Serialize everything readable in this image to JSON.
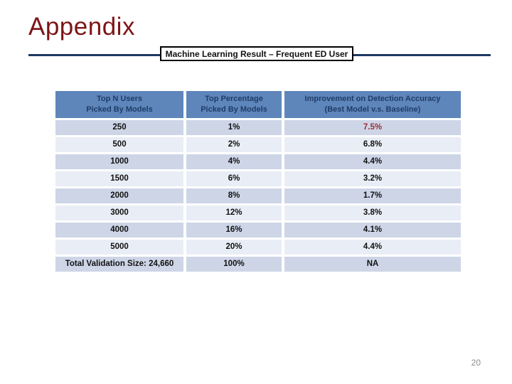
{
  "slide": {
    "title": "Appendix",
    "callout": "Machine Learning Result – Frequent ED User",
    "page_number": "20"
  },
  "table": {
    "headers": [
      {
        "line1": "Top N Users",
        "line2": "Picked By Models"
      },
      {
        "line1": "Top Percentage",
        "line2": "Picked By Models"
      },
      {
        "line1": "Improvement on Detection Accuracy",
        "line2": "(Best Model v.s. Baseline)"
      }
    ],
    "rows": [
      {
        "top_n_users": "250",
        "top_percentage": "1%",
        "improvement": "7.5%",
        "highlight": true
      },
      {
        "top_n_users": "500",
        "top_percentage": "2%",
        "improvement": "6.8%",
        "highlight": false
      },
      {
        "top_n_users": "1000",
        "top_percentage": "4%",
        "improvement": "4.4%",
        "highlight": false
      },
      {
        "top_n_users": "1500",
        "top_percentage": "6%",
        "improvement": "3.2%",
        "highlight": false
      },
      {
        "top_n_users": "2000",
        "top_percentage": "8%",
        "improvement": "1.7%",
        "highlight": false
      },
      {
        "top_n_users": "3000",
        "top_percentage": "12%",
        "improvement": "3.8%",
        "highlight": false
      },
      {
        "top_n_users": "4000",
        "top_percentage": "16%",
        "improvement": "4.1%",
        "highlight": false
      },
      {
        "top_n_users": "5000",
        "top_percentage": "20%",
        "improvement": "4.4%",
        "highlight": false
      },
      {
        "top_n_users": "Total Validation Size: 24,660",
        "top_percentage": "100%",
        "improvement": "NA",
        "highlight": false
      }
    ]
  },
  "colors": {
    "title_maroon": "#7d1517",
    "rule_navy": "#1f3864",
    "callout_border": "#000000",
    "header_bg": "#5e86bb",
    "header_text": "#1f3c68",
    "row_odd_bg": "#cdd5e7",
    "row_even_bg": "#e9edf5",
    "highlight_red": "#9b3134",
    "page_number_gray": "#8c8c8c"
  }
}
